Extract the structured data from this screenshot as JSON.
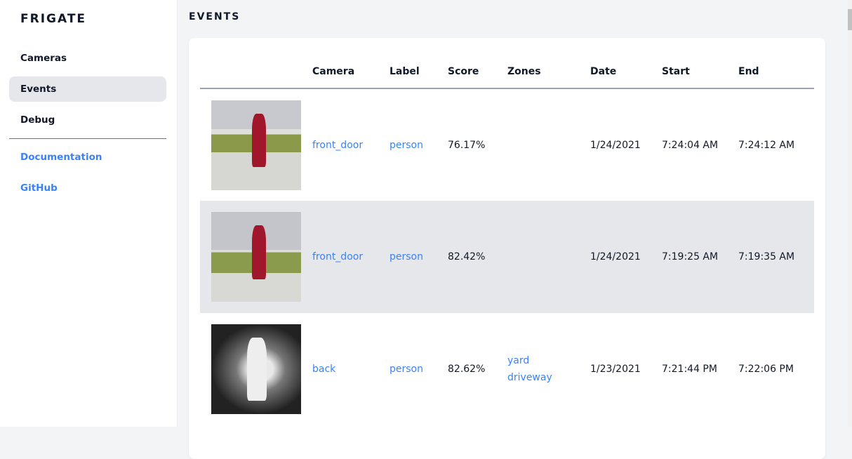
{
  "sidebar": {
    "brand": "FRIGATE",
    "items": [
      {
        "label": "Cameras"
      },
      {
        "label": "Events"
      },
      {
        "label": "Debug"
      }
    ],
    "links": [
      {
        "label": "Documentation"
      },
      {
        "label": "GitHub"
      }
    ]
  },
  "page": {
    "title": "EVENTS"
  },
  "table": {
    "headers": [
      "",
      "Camera",
      "Label",
      "Score",
      "Zones",
      "Date",
      "Start",
      "End"
    ],
    "rows": [
      {
        "thumbnail": "snapshot-woman-walking-dog",
        "camera": "front_door",
        "label": "person",
        "score": "76.17%",
        "zones": [
          "",
          ""
        ],
        "date": "1/24/2021",
        "start": "7:24:04 AM",
        "end": "7:24:12 AM"
      },
      {
        "thumbnail": "snapshot-woman-walking-dog",
        "camera": "front_door",
        "label": "person",
        "score": "82.42%",
        "zones": [
          "",
          ""
        ],
        "date": "1/24/2021",
        "start": "7:19:25 AM",
        "end": "7:19:35 AM"
      },
      {
        "thumbnail": "snapshot-night-person",
        "camera": "back",
        "label": "person",
        "score": "82.62%",
        "zones": [
          "yard",
          "driveway"
        ],
        "date": "1/23/2021",
        "start": "7:21:44 PM",
        "end": "7:22:06 PM"
      }
    ]
  },
  "colors": {
    "accent": "#3b82f6",
    "active_bg": "#e5e7eb"
  }
}
